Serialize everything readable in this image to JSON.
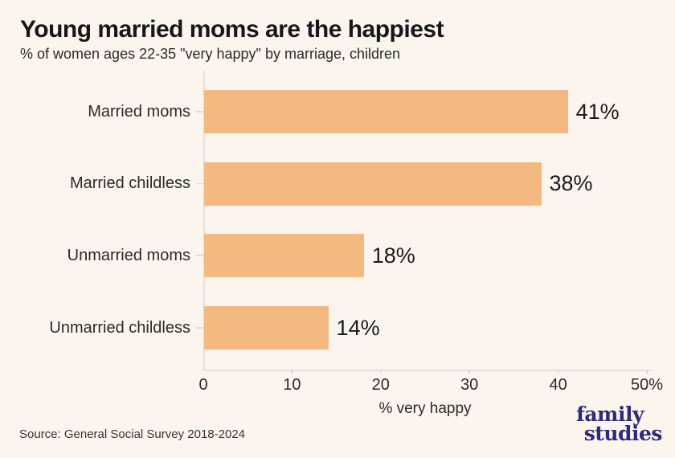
{
  "page": {
    "background": "#fbf5ee"
  },
  "header": {
    "title": "Young married moms are the happiest",
    "subtitle": "% of women ages 22-35 \"very happy\" by marriage, children"
  },
  "chart_data": {
    "type": "bar",
    "orientation": "horizontal",
    "title": "Young married moms are the happiest",
    "subtitle": "% of women ages 22-35 \"very happy\" by marriage, children",
    "categories": [
      "Married moms",
      "Married childless",
      "Unmarried moms",
      "Unmarried childless"
    ],
    "values": [
      41,
      38,
      18,
      14
    ],
    "value_labels": [
      "41%",
      "38%",
      "18%",
      "14%"
    ],
    "xlabel": "% very happy",
    "ylabel": "",
    "xlim": [
      0,
      50
    ],
    "x_ticks": [
      0,
      10,
      20,
      30,
      40,
      50
    ],
    "x_tick_labels": [
      "0",
      "10",
      "20",
      "30",
      "40",
      "50%"
    ],
    "bar_color": "#f3b981",
    "grid": false,
    "legend": "none"
  },
  "footer": {
    "source": "Source: General Social Survey 2018-2024",
    "logo_line1": "family",
    "logo_line2": "studies",
    "logo_color": "#2f2a7a"
  }
}
